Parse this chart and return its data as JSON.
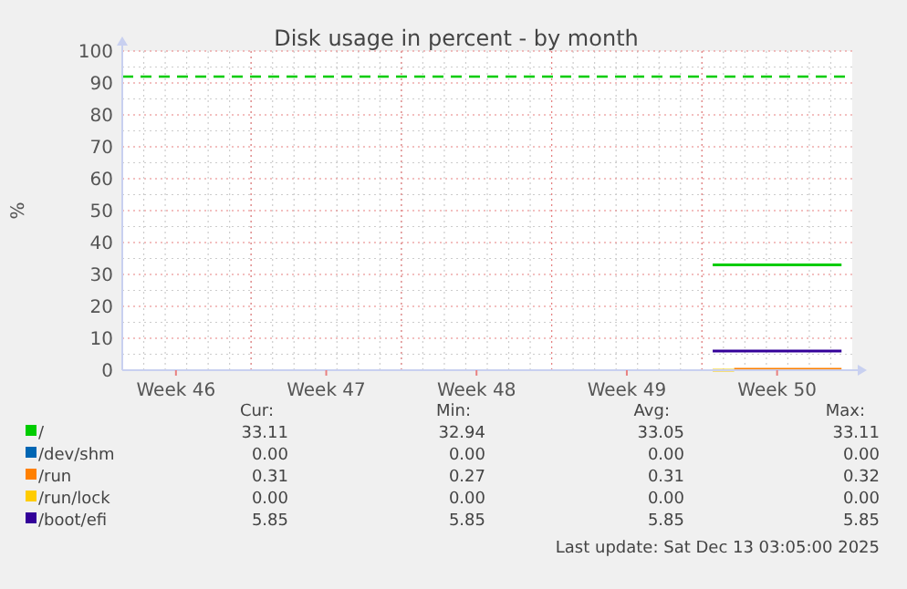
{
  "chart_data": {
    "type": "line",
    "title": "Disk usage in percent - by month",
    "ylabel": "%",
    "categories": [
      null,
      null,
      "Week 46",
      null,
      null,
      null,
      null,
      null,
      null,
      "Week 47",
      null,
      null,
      null,
      null,
      null,
      null,
      "Week 48",
      null,
      null,
      null,
      null,
      null,
      null,
      "Week 49",
      null,
      null,
      null,
      null,
      null,
      null,
      "Week 50",
      null,
      null,
      null
    ],
    "ylim": [
      0,
      100
    ],
    "yticks": [
      0,
      10,
      20,
      30,
      40,
      50,
      60,
      70,
      80,
      90,
      100
    ],
    "grid": true,
    "legend": "bottom",
    "line_style": "solid",
    "marker": "none",
    "series": [
      {
        "name": "/",
        "color": "#00cc00",
        "values": [
          null,
          null,
          null,
          null,
          null,
          null,
          null,
          null,
          null,
          null,
          null,
          null,
          null,
          null,
          null,
          null,
          null,
          null,
          null,
          null,
          null,
          null,
          null,
          null,
          null,
          null,
          null,
          33,
          33,
          33,
          33,
          33,
          33,
          33
        ]
      },
      {
        "name": "/dev/shm",
        "color": "#0066b3",
        "values": [
          null,
          null,
          null,
          null,
          null,
          null,
          null,
          null,
          null,
          null,
          null,
          null,
          null,
          null,
          null,
          null,
          null,
          null,
          null,
          null,
          null,
          null,
          null,
          null,
          null,
          null,
          null,
          null,
          null,
          null,
          null,
          null,
          null,
          null
        ]
      },
      {
        "name": "/run",
        "color": "#ff8000",
        "values": [
          null,
          null,
          null,
          null,
          null,
          null,
          null,
          null,
          null,
          null,
          null,
          null,
          null,
          null,
          null,
          null,
          null,
          null,
          null,
          null,
          null,
          null,
          null,
          null,
          null,
          null,
          null,
          null,
          0.3,
          0.3,
          0.3,
          0.3,
          0.3,
          0.3
        ]
      },
      {
        "name": "/run/lock",
        "color": "#ffcc00",
        "values": [
          null,
          null,
          null,
          null,
          null,
          null,
          null,
          null,
          null,
          null,
          null,
          null,
          null,
          null,
          null,
          null,
          null,
          null,
          null,
          null,
          null,
          null,
          null,
          null,
          null,
          null,
          null,
          0,
          0,
          null,
          null,
          null,
          null,
          null
        ]
      },
      {
        "name": "/boot/efi",
        "color": "#330099",
        "values": [
          null,
          null,
          null,
          null,
          null,
          null,
          null,
          null,
          null,
          null,
          null,
          null,
          null,
          null,
          null,
          null,
          null,
          null,
          null,
          null,
          null,
          null,
          null,
          null,
          null,
          null,
          null,
          6,
          6,
          6,
          6,
          6,
          6,
          6
        ]
      }
    ],
    "ref_lines": [
      {
        "axis": "y",
        "value": 92,
        "label": null,
        "color": "#00cc00",
        "line_style": "dashed"
      }
    ],
    "annotations": [
      "Cur:",
      "Min:",
      "Avg:",
      "Max:",
      "33.11",
      "32.94",
      "33.05",
      "33.11",
      "0.00",
      "0.00",
      "0.00",
      "0.00",
      "0.31",
      "0.27",
      "0.31",
      "0.32",
      "0.00",
      "0.00",
      "0.00",
      "0.00",
      "5.85",
      "5.85",
      "5.85",
      "5.85",
      "Last update: Sat Dec 13 03:05:00 2025"
    ]
  }
}
